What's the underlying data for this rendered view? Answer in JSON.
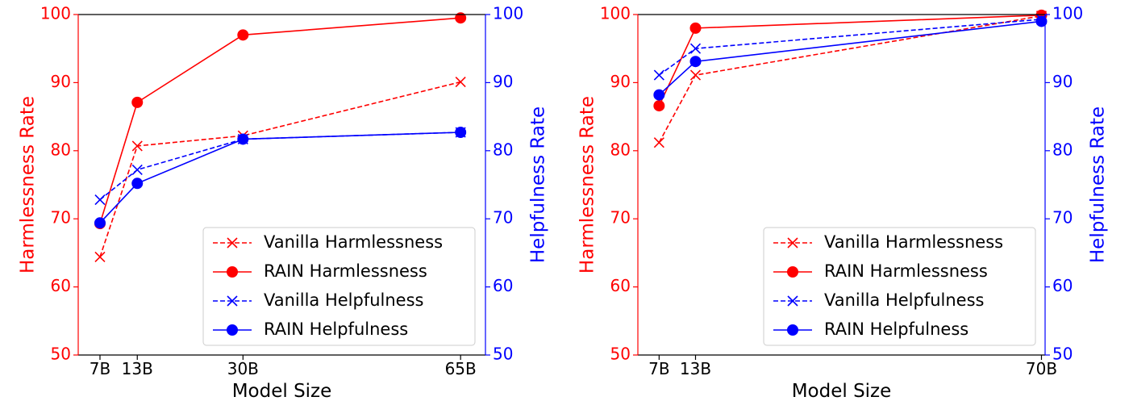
{
  "colors": {
    "harmlessness": "#ff0000",
    "helpfulness": "#0000ff",
    "axis": "#000000"
  },
  "chart_data": [
    {
      "type": "line",
      "categories": [
        "7B",
        "13B",
        "30B",
        "65B"
      ],
      "x_positions": [
        7,
        13,
        30,
        65
      ],
      "xlim": [
        3.5,
        69
      ],
      "xlabel": "Model Size",
      "ylabel_left": "Harmlessness Rate",
      "ylabel_right": "Helpfulness Rate",
      "ylim_left": [
        50,
        100
      ],
      "ylim_right": [
        50,
        100
      ],
      "yticks_left": [
        "50",
        "60",
        "70",
        "80",
        "90",
        "100"
      ],
      "yticks_right": [
        "50",
        "60",
        "70",
        "80",
        "90",
        "100"
      ],
      "legend_position": "lower-right",
      "series": [
        {
          "name": "Vanilla Harmlessness",
          "axis": "left",
          "color": "#ff0000",
          "style": "dashed",
          "marker": "x",
          "values": [
            64.4,
            80.7,
            82.2,
            90.1
          ]
        },
        {
          "name": "RAIN Harmlessness",
          "axis": "left",
          "color": "#ff0000",
          "style": "solid",
          "marker": "o",
          "values": [
            69.3,
            87.1,
            97.0,
            99.5
          ]
        },
        {
          "name": "Vanilla Helpfulness",
          "axis": "right",
          "color": "#0000ff",
          "style": "dashed",
          "marker": "x",
          "values": [
            72.8,
            77.2,
            81.7,
            82.7
          ]
        },
        {
          "name": "RAIN Helpfulness",
          "axis": "right",
          "color": "#0000ff",
          "style": "solid",
          "marker": "o",
          "values": [
            69.4,
            75.2,
            81.7,
            82.7
          ]
        }
      ]
    },
    {
      "type": "line",
      "categories": [
        "7B",
        "13B",
        "70B"
      ],
      "x_positions": [
        7,
        13,
        70
      ],
      "xlim": [
        3.5,
        70.6
      ],
      "xlabel": "Model Size",
      "ylabel_left": "Harmlessness Rate",
      "ylabel_right": "Helpfulness Rate",
      "ylim_left": [
        50,
        100
      ],
      "ylim_right": [
        50,
        100
      ],
      "yticks_left": [
        "50",
        "60",
        "70",
        "80",
        "90",
        "100"
      ],
      "yticks_right": [
        "50",
        "60",
        "70",
        "80",
        "90",
        "100"
      ],
      "legend_position": "lower-right",
      "series": [
        {
          "name": "Vanilla Harmlessness",
          "axis": "left",
          "color": "#ff0000",
          "style": "dashed",
          "marker": "x",
          "values": [
            81.2,
            91.1,
            99.8
          ]
        },
        {
          "name": "RAIN Harmlessness",
          "axis": "left",
          "color": "#ff0000",
          "style": "solid",
          "marker": "o",
          "values": [
            86.6,
            98.0,
            99.9
          ]
        },
        {
          "name": "Vanilla Helpfulness",
          "axis": "right",
          "color": "#0000ff",
          "style": "dashed",
          "marker": "x",
          "values": [
            91.1,
            95.0,
            99.3
          ]
        },
        {
          "name": "RAIN Helpfulness",
          "axis": "right",
          "color": "#0000ff",
          "style": "solid",
          "marker": "o",
          "values": [
            88.2,
            93.1,
            99.0
          ]
        }
      ]
    }
  ]
}
